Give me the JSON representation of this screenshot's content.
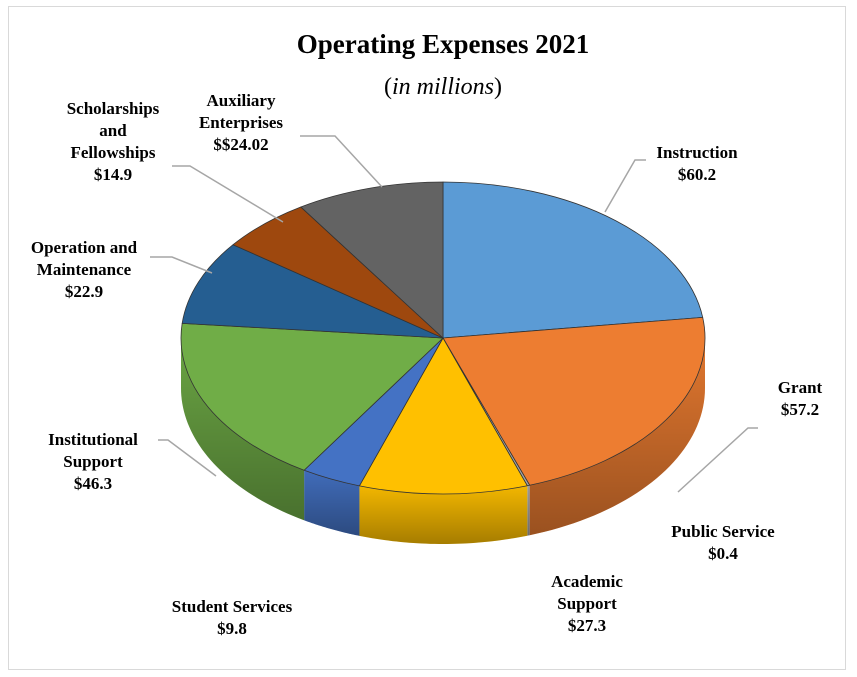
{
  "chart_data": {
    "type": "pie",
    "title": "Operating Expenses 2021",
    "subtitle_prefix": "(",
    "subtitle_italic": "in millions",
    "subtitle_suffix": ")",
    "slices": [
      {
        "name": "Instruction",
        "label_lines": [
          "Instruction",
          "$60.2"
        ],
        "value": 60.2,
        "color": "#5b9bd5"
      },
      {
        "name": "Grant",
        "label_lines": [
          "Grant",
          "$57.2"
        ],
        "value": 57.2,
        "color": "#ed7d31"
      },
      {
        "name": "Public Service",
        "label_lines": [
          "Public Service",
          "$0.4"
        ],
        "value": 0.4,
        "color": "#a5a5a5"
      },
      {
        "name": "Academic Support",
        "label_lines": [
          "Academic",
          "Support",
          "$27.3"
        ],
        "value": 27.3,
        "color": "#ffc000"
      },
      {
        "name": "Student Services",
        "label_lines": [
          "Student Services",
          "$9.8"
        ],
        "value": 9.8,
        "color": "#4472c4"
      },
      {
        "name": "Institutional Support",
        "label_lines": [
          "Institutional",
          "Support",
          "$46.3"
        ],
        "value": 46.3,
        "color": "#70ad47"
      },
      {
        "name": "Operation and Maintenance",
        "label_lines": [
          "Operation and",
          "Maintenance",
          "$22.9"
        ],
        "value": 22.9,
        "color": "#255e91"
      },
      {
        "name": "Scholarships and Fellowships",
        "label_lines": [
          "Scholarships",
          "and",
          "Fellowships",
          "$14.9"
        ],
        "value": 14.9,
        "color": "#9e480e"
      },
      {
        "name": "Auxiliary Enterprises",
        "label_lines": [
          "Auxiliary",
          "Enterprises",
          "$$24.02"
        ],
        "value": 24.02,
        "color": "#636363"
      }
    ]
  }
}
